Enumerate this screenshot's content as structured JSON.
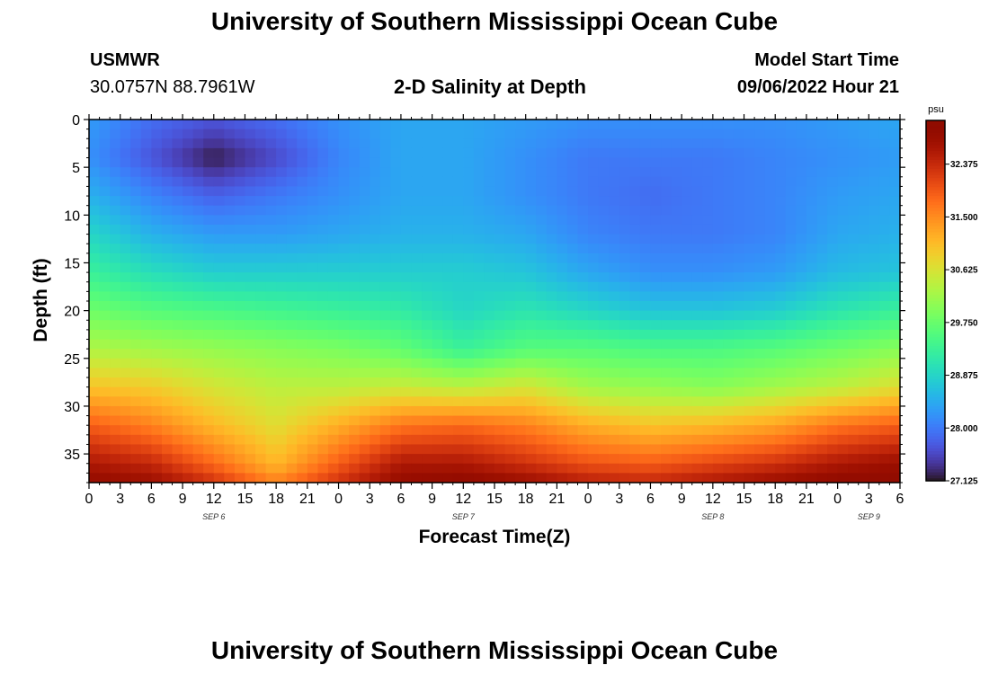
{
  "header": {
    "title": "University of Southern Mississippi Ocean Cube",
    "station_id": "USMWR",
    "station_coords": "30.0757N  88.7961W",
    "plot_title": "2-D Salinity at Depth",
    "model_start_label": "Model Start Time",
    "model_start_value": "09/06/2022 Hour 21",
    "footer_title": "University of Southern Mississippi Ocean Cube"
  },
  "chart_data": {
    "type": "heatmap",
    "title": "2-D Salinity at Depth",
    "xlabel": "Forecast Time(Z)",
    "ylabel": "Depth (ft)",
    "x_tick_labels": [
      "0",
      "3",
      "6",
      "9",
      "12",
      "15",
      "18",
      "21",
      "0",
      "3",
      "6",
      "9",
      "12",
      "15",
      "18",
      "21",
      "0",
      "3",
      "6",
      "9",
      "12",
      "15",
      "18",
      "21",
      "0",
      "3",
      "6"
    ],
    "x_hours_range": [
      0,
      78
    ],
    "date_labels": [
      {
        "label": "SEP 6",
        "hour": 12
      },
      {
        "label": "SEP 7",
        "hour": 36
      },
      {
        "label": "SEP 8",
        "hour": 60
      },
      {
        "label": "SEP 9",
        "hour": 75
      }
    ],
    "y_ticks": [
      0,
      5,
      10,
      15,
      20,
      25,
      30,
      35
    ],
    "ylim": [
      0,
      38
    ],
    "y_inverted": true,
    "colorbar": {
      "unit": "psu",
      "ticks": [
        "32.375",
        "31.500",
        "30.625",
        "29.750",
        "28.875",
        "28.000",
        "27.125"
      ],
      "range": [
        27.125,
        33.1
      ],
      "colormap": "turbo"
    },
    "z_grid": {
      "x_hours": [
        0,
        6,
        12,
        18,
        24,
        30,
        36,
        42,
        48,
        54,
        60,
        66,
        72,
        78
      ],
      "depth_ft": [
        0,
        4,
        8,
        12,
        16,
        20,
        24,
        28,
        32,
        36,
        38
      ],
      "values": [
        [
          28.3,
          27.9,
          27.7,
          27.9,
          28.2,
          28.4,
          28.4,
          28.3,
          28.2,
          28.2,
          28.2,
          28.2,
          28.3,
          28.4
        ],
        [
          28.2,
          27.7,
          27.2,
          27.6,
          28.1,
          28.4,
          28.4,
          28.2,
          28.0,
          28.0,
          28.0,
          28.1,
          28.2,
          28.3
        ],
        [
          28.5,
          28.1,
          27.8,
          28.0,
          28.2,
          28.4,
          28.4,
          28.2,
          28.0,
          27.9,
          28.0,
          28.1,
          28.3,
          28.4
        ],
        [
          28.9,
          28.5,
          28.3,
          28.3,
          28.4,
          28.5,
          28.5,
          28.4,
          28.1,
          28.0,
          28.0,
          28.1,
          28.4,
          28.5
        ],
        [
          29.3,
          29.0,
          28.8,
          28.8,
          28.8,
          28.8,
          28.8,
          28.7,
          28.4,
          28.2,
          28.2,
          28.3,
          28.6,
          28.7
        ],
        [
          29.8,
          29.6,
          29.5,
          29.4,
          29.3,
          29.2,
          28.9,
          29.1,
          28.9,
          28.7,
          28.7,
          28.8,
          29.1,
          29.3
        ],
        [
          30.3,
          30.2,
          30.1,
          30.0,
          29.9,
          29.7,
          29.3,
          29.6,
          29.6,
          29.5,
          29.5,
          29.6,
          29.8,
          30.0
        ],
        [
          31.0,
          30.9,
          30.6,
          30.4,
          30.4,
          30.5,
          30.4,
          30.6,
          30.2,
          30.1,
          30.0,
          30.2,
          30.4,
          30.7
        ],
        [
          31.9,
          31.6,
          31.1,
          30.7,
          31.2,
          31.7,
          31.8,
          31.6,
          31.2,
          31.0,
          31.1,
          31.3,
          31.7,
          31.9
        ],
        [
          32.6,
          32.4,
          31.8,
          31.1,
          31.9,
          32.6,
          32.6,
          32.3,
          32.0,
          31.9,
          32.1,
          32.3,
          32.6,
          32.8
        ],
        [
          32.9,
          32.8,
          32.3,
          31.6,
          32.3,
          32.9,
          33.0,
          32.8,
          32.5,
          32.4,
          32.6,
          32.8,
          33.0,
          33.0
        ]
      ]
    }
  }
}
